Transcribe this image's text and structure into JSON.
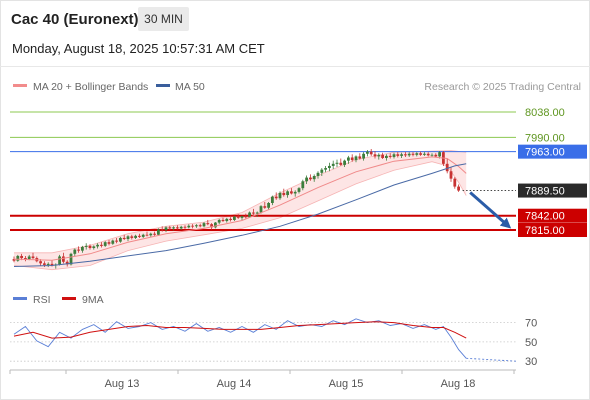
{
  "header": {
    "title": "Cac 40 (Euronext)",
    "timeframe": "30 MIN",
    "datetime": "Monday, August 18, 2025 10:57:31 AM CET"
  },
  "legend": {
    "items": [
      {
        "label": "MA 20 + Bollinger Bands",
        "color": "#f28c8c"
      },
      {
        "label": "MA 50",
        "color": "#3a5e9c"
      }
    ],
    "credit": "Research © 2025 Trading Central"
  },
  "colors": {
    "up": "#3c7d3c",
    "down": "#c83232",
    "ma20": "#f08a8a",
    "band": "#fde0e0",
    "ma50": "#4a6aa6",
    "resistance": "#8cc850",
    "pivot": "#3a6ee8",
    "support": "#cc0000",
    "arrow": "#2a5ca8",
    "rsi": "#5a7fd6",
    "rsi_ma": "#d01010"
  },
  "chart_data": [
    {
      "type": "candlestick",
      "x_labels": [
        "Aug 13",
        "Aug 14",
        "Aug 15",
        "Aug 18"
      ],
      "ylim": [
        7730,
        8070
      ],
      "levels": [
        {
          "value": 8038.0,
          "label": "8038.00",
          "kind": "resistance"
        },
        {
          "value": 7990.0,
          "label": "7990.00",
          "kind": "resistance"
        },
        {
          "value": 7963.0,
          "label": "7963.00",
          "kind": "pivot"
        },
        {
          "value": 7889.5,
          "label": "7889.50",
          "kind": "last"
        },
        {
          "value": 7842.0,
          "label": "7842.00",
          "kind": "support"
        },
        {
          "value": 7815.0,
          "label": "7815.00",
          "kind": "support"
        }
      ],
      "candles": [
        [
          7760,
          7765,
          7754,
          7757
        ],
        [
          7757,
          7768,
          7755,
          7766
        ],
        [
          7766,
          7770,
          7758,
          7762
        ],
        [
          7762,
          7766,
          7756,
          7760
        ],
        [
          7760,
          7768,
          7758,
          7765
        ],
        [
          7765,
          7772,
          7760,
          7762
        ],
        [
          7762,
          7765,
          7754,
          7756
        ],
        [
          7756,
          7760,
          7748,
          7752
        ],
        [
          7752,
          7756,
          7745,
          7749
        ],
        [
          7749,
          7754,
          7745,
          7751
        ],
        [
          7751,
          7758,
          7746,
          7748
        ],
        [
          7748,
          7752,
          7742,
          7750
        ],
        [
          7750,
          7768,
          7748,
          7765
        ],
        [
          7765,
          7772,
          7752,
          7755
        ],
        [
          7755,
          7758,
          7746,
          7750
        ],
        [
          7750,
          7772,
          7748,
          7770
        ],
        [
          7770,
          7780,
          7766,
          7778
        ],
        [
          7778,
          7784,
          7772,
          7776
        ],
        [
          7776,
          7785,
          7772,
          7783
        ],
        [
          7783,
          7790,
          7778,
          7785
        ],
        [
          7785,
          7788,
          7778,
          7781
        ],
        [
          7781,
          7786,
          7778,
          7784
        ],
        [
          7784,
          7790,
          7780,
          7787
        ],
        [
          7787,
          7792,
          7782,
          7785
        ],
        [
          7785,
          7794,
          7783,
          7792
        ],
        [
          7792,
          7796,
          7786,
          7789
        ],
        [
          7789,
          7797,
          7787,
          7795
        ],
        [
          7795,
          7800,
          7790,
          7793
        ],
        [
          7793,
          7802,
          7791,
          7800
        ],
        [
          7800,
          7806,
          7796,
          7798
        ],
        [
          7798,
          7805,
          7794,
          7803
        ],
        [
          7803,
          7806,
          7797,
          7800
        ],
        [
          7800,
          7806,
          7798,
          7804
        ],
        [
          7804,
          7808,
          7800,
          7802
        ],
        [
          7802,
          7808,
          7800,
          7806
        ],
        [
          7806,
          7812,
          7803,
          7805
        ],
        [
          7805,
          7810,
          7802,
          7808
        ],
        [
          7808,
          7812,
          7804,
          7806
        ],
        [
          7806,
          7818,
          7804,
          7816
        ],
        [
          7816,
          7822,
          7812,
          7815
        ],
        [
          7815,
          7822,
          7811,
          7820
        ],
        [
          7820,
          7823,
          7815,
          7818
        ],
        [
          7818,
          7822,
          7814,
          7820
        ],
        [
          7820,
          7824,
          7816,
          7818
        ],
        [
          7818,
          7823,
          7815,
          7821
        ],
        [
          7821,
          7824,
          7817,
          7820
        ],
        [
          7820,
          7826,
          7818,
          7823
        ],
        [
          7823,
          7826,
          7818,
          7822
        ],
        [
          7822,
          7826,
          7819,
          7824
        ],
        [
          7824,
          7827,
          7820,
          7822
        ],
        [
          7822,
          7830,
          7820,
          7828
        ],
        [
          7828,
          7834,
          7824,
          7826
        ],
        [
          7826,
          7828,
          7816,
          7820
        ],
        [
          7820,
          7830,
          7818,
          7829
        ],
        [
          7829,
          7836,
          7826,
          7834
        ],
        [
          7834,
          7838,
          7830,
          7832
        ],
        [
          7832,
          7838,
          7829,
          7836
        ],
        [
          7836,
          7839,
          7831,
          7834
        ],
        [
          7834,
          7842,
          7832,
          7840
        ],
        [
          7840,
          7845,
          7836,
          7838
        ],
        [
          7838,
          7842,
          7834,
          7841
        ],
        [
          7841,
          7846,
          7837,
          7839
        ],
        [
          7839,
          7850,
          7838,
          7848
        ],
        [
          7848,
          7855,
          7844,
          7846
        ],
        [
          7846,
          7850,
          7840,
          7848
        ],
        [
          7848,
          7862,
          7846,
          7860
        ],
        [
          7860,
          7868,
          7855,
          7857
        ],
        [
          7857,
          7868,
          7854,
          7866
        ],
        [
          7866,
          7880,
          7862,
          7878
        ],
        [
          7878,
          7886,
          7872,
          7875
        ],
        [
          7875,
          7888,
          7872,
          7885
        ],
        [
          7885,
          7893,
          7878,
          7881
        ],
        [
          7881,
          7890,
          7876,
          7888
        ],
        [
          7888,
          7894,
          7882,
          7884
        ],
        [
          7884,
          7890,
          7878,
          7887
        ],
        [
          7887,
          7896,
          7884,
          7894
        ],
        [
          7894,
          7910,
          7890,
          7907
        ],
        [
          7907,
          7918,
          7902,
          7914
        ],
        [
          7914,
          7920,
          7908,
          7911
        ],
        [
          7911,
          7920,
          7906,
          7917
        ],
        [
          7917,
          7926,
          7912,
          7923
        ],
        [
          7923,
          7932,
          7917,
          7929
        ],
        [
          7929,
          7936,
          7924,
          7932
        ],
        [
          7932,
          7942,
          7926,
          7936
        ],
        [
          7936,
          7946,
          7930,
          7940
        ],
        [
          7940,
          7948,
          7934,
          7942
        ],
        [
          7942,
          7950,
          7936,
          7938
        ],
        [
          7938,
          7948,
          7934,
          7946
        ],
        [
          7946,
          7955,
          7940,
          7952
        ],
        [
          7952,
          7958,
          7944,
          7947
        ],
        [
          7947,
          7956,
          7943,
          7954
        ],
        [
          7954,
          7960,
          7948,
          7950
        ],
        [
          7950,
          7962,
          7946,
          7959
        ],
        [
          7959,
          7966,
          7954,
          7963
        ],
        [
          7963,
          7968,
          7955,
          7958
        ],
        [
          7958,
          7964,
          7950,
          7954
        ],
        [
          7954,
          7960,
          7948,
          7957
        ],
        [
          7957,
          7961,
          7949,
          7951
        ],
        [
          7951,
          7958,
          7946,
          7955
        ],
        [
          7955,
          7960,
          7950,
          7953
        ],
        [
          7953,
          7961,
          7950,
          7958
        ],
        [
          7958,
          7962,
          7952,
          7955
        ],
        [
          7955,
          7961,
          7951,
          7958
        ],
        [
          7958,
          7962,
          7953,
          7956
        ],
        [
          7956,
          7962,
          7953,
          7959
        ],
        [
          7959,
          7962,
          7954,
          7957
        ],
        [
          7957,
          7962,
          7954,
          7960
        ],
        [
          7960,
          7963,
          7955,
          7957
        ],
        [
          7957,
          7962,
          7955,
          7959
        ],
        [
          7959,
          7962,
          7954,
          7956
        ],
        [
          7956,
          7960,
          7952,
          7957
        ],
        [
          7957,
          7960,
          7952,
          7954
        ],
        [
          7954,
          7964,
          7950,
          7962
        ],
        [
          7962,
          7964,
          7936,
          7940
        ],
        [
          7940,
          7950,
          7922,
          7926
        ],
        [
          7926,
          7934,
          7906,
          7912
        ],
        [
          7912,
          7915,
          7893,
          7897
        ],
        [
          7897,
          7901,
          7887,
          7889.5
        ]
      ],
      "ma20": [
        [
          0,
          7760
        ],
        [
          10,
          7758
        ],
        [
          20,
          7770
        ],
        [
          30,
          7792
        ],
        [
          40,
          7808
        ],
        [
          50,
          7818
        ],
        [
          60,
          7833
        ],
        [
          70,
          7862
        ],
        [
          80,
          7895
        ],
        [
          90,
          7925
        ],
        [
          100,
          7945
        ],
        [
          110,
          7953
        ],
        [
          114,
          7950
        ],
        [
          117,
          7935
        ],
        [
          119,
          7922
        ]
      ],
      "bb_upper": [
        [
          0,
          7772
        ],
        [
          10,
          7772
        ],
        [
          20,
          7786
        ],
        [
          30,
          7808
        ],
        [
          40,
          7822
        ],
        [
          50,
          7830
        ],
        [
          60,
          7848
        ],
        [
          70,
          7885
        ],
        [
          80,
          7918
        ],
        [
          90,
          7948
        ],
        [
          100,
          7962
        ],
        [
          110,
          7964
        ],
        [
          115,
          7965
        ],
        [
          119,
          7962
        ]
      ],
      "bb_lower": [
        [
          0,
          7748
        ],
        [
          10,
          7740
        ],
        [
          20,
          7748
        ],
        [
          30,
          7776
        ],
        [
          40,
          7794
        ],
        [
          50,
          7806
        ],
        [
          60,
          7818
        ],
        [
          70,
          7838
        ],
        [
          80,
          7870
        ],
        [
          90,
          7902
        ],
        [
          100,
          7928
        ],
        [
          110,
          7944
        ],
        [
          114,
          7936
        ],
        [
          117,
          7905
        ],
        [
          119,
          7880
        ]
      ],
      "ma50": [
        [
          0,
          7746
        ],
        [
          10,
          7748
        ],
        [
          20,
          7756
        ],
        [
          30,
          7766
        ],
        [
          40,
          7776
        ],
        [
          50,
          7790
        ],
        [
          60,
          7805
        ],
        [
          70,
          7822
        ],
        [
          80,
          7845
        ],
        [
          90,
          7872
        ],
        [
          100,
          7900
        ],
        [
          110,
          7922
        ],
        [
          116,
          7936
        ],
        [
          119,
          7940
        ]
      ],
      "projection": {
        "from": [
          119,
          7889.5
        ],
        "to": [
          130,
          7823
        ]
      }
    },
    {
      "type": "line",
      "legend": [
        {
          "name": "RSI",
          "color": "#5a7fd6"
        },
        {
          "name": "9MA",
          "color": "#d01010"
        }
      ],
      "ylim": [
        25,
        80
      ],
      "yticks": [
        70,
        50,
        30
      ],
      "rsi": [
        [
          0,
          58
        ],
        [
          3,
          66
        ],
        [
          6,
          51
        ],
        [
          9,
          45
        ],
        [
          12,
          60
        ],
        [
          15,
          54
        ],
        [
          18,
          63
        ],
        [
          21,
          68
        ],
        [
          24,
          60
        ],
        [
          27,
          71
        ],
        [
          30,
          64
        ],
        [
          33,
          66
        ],
        [
          36,
          70
        ],
        [
          39,
          63
        ],
        [
          42,
          66
        ],
        [
          45,
          61
        ],
        [
          48,
          69
        ],
        [
          51,
          61
        ],
        [
          54,
          65
        ],
        [
          57,
          60
        ],
        [
          60,
          66
        ],
        [
          63,
          60
        ],
        [
          66,
          68
        ],
        [
          69,
          63
        ],
        [
          72,
          72
        ],
        [
          75,
          66
        ],
        [
          78,
          68
        ],
        [
          81,
          66
        ],
        [
          84,
          72
        ],
        [
          87,
          68
        ],
        [
          90,
          74
        ],
        [
          93,
          70
        ],
        [
          96,
          72
        ],
        [
          99,
          67
        ],
        [
          102,
          69
        ],
        [
          105,
          64
        ],
        [
          108,
          68
        ],
        [
          111,
          63
        ],
        [
          113,
          66
        ],
        [
          115,
          55
        ],
        [
          117,
          42
        ],
        [
          119,
          33
        ]
      ],
      "rsi_ma": [
        [
          0,
          56
        ],
        [
          5,
          60
        ],
        [
          10,
          54
        ],
        [
          15,
          55
        ],
        [
          20,
          60
        ],
        [
          25,
          63
        ],
        [
          30,
          66
        ],
        [
          35,
          67
        ],
        [
          40,
          65
        ],
        [
          45,
          65
        ],
        [
          50,
          64
        ],
        [
          55,
          63
        ],
        [
          60,
          63
        ],
        [
          65,
          63
        ],
        [
          70,
          65
        ],
        [
          75,
          67
        ],
        [
          80,
          68
        ],
        [
          85,
          69
        ],
        [
          90,
          70
        ],
        [
          95,
          71
        ],
        [
          100,
          70
        ],
        [
          105,
          67
        ],
        [
          110,
          65
        ],
        [
          113,
          65
        ],
        [
          116,
          60
        ],
        [
          119,
          54
        ]
      ],
      "rsi_projection_level": 30
    }
  ]
}
